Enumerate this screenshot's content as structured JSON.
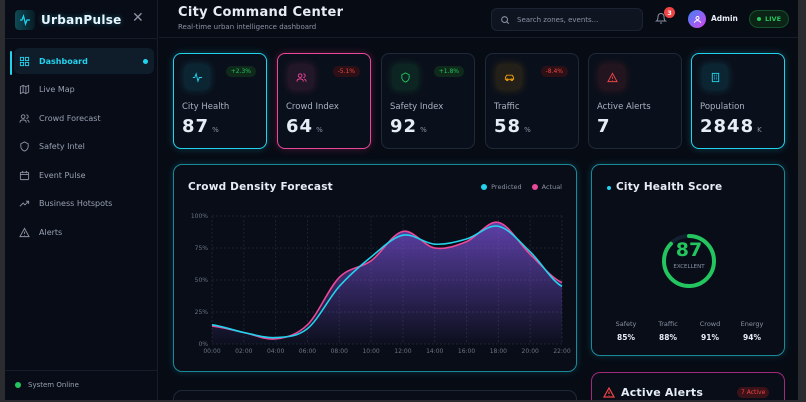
{
  "sidebar": {
    "brand": "UrbanPulse",
    "items": [
      {
        "label": "Dashboard",
        "icon": "grid-icon",
        "active": true
      },
      {
        "label": "Live Map",
        "icon": "map-icon"
      },
      {
        "label": "Crowd Forecast",
        "icon": "users-icon"
      },
      {
        "label": "Safety Intel",
        "icon": "shield-icon"
      },
      {
        "label": "Event Pulse",
        "icon": "calendar-icon"
      },
      {
        "label": "Business Hotspots",
        "icon": "trending-up-icon"
      },
      {
        "label": "Alerts",
        "icon": "alert-triangle-icon"
      }
    ],
    "status": "System Online"
  },
  "header": {
    "title": "City Command Center",
    "subtitle": "Real-time urban intelligence dashboard",
    "search_placeholder": "Search zones, events...",
    "notification_count": "3",
    "user": "Admin",
    "live": "LIVE"
  },
  "cards": [
    {
      "label": "City Health",
      "value": "87",
      "unit": "%",
      "change": "+2.3%",
      "trend": "up",
      "color": "#22d3ee",
      "icon": "activity-icon"
    },
    {
      "label": "Crowd Index",
      "value": "64",
      "unit": "%",
      "change": "-5.1%",
      "trend": "down",
      "color": "#ec4899",
      "icon": "users-icon"
    },
    {
      "label": "Safety Index",
      "value": "92",
      "unit": "%",
      "change": "+1.8%",
      "trend": "up",
      "color": "#22c55e",
      "icon": "shield-icon"
    },
    {
      "label": "Traffic",
      "value": "58",
      "unit": "%",
      "change": "-8.4%",
      "trend": "down",
      "color": "#f59e0b",
      "icon": "car-icon"
    },
    {
      "label": "Active Alerts",
      "value": "7",
      "unit": "",
      "change": "",
      "color": "#ef4444",
      "icon": "alert-triangle-icon"
    },
    {
      "label": "Population",
      "value": "2848",
      "unit": "K",
      "change": "",
      "color": "#22d3ee",
      "icon": "building-icon"
    }
  ],
  "chart_data": {
    "type": "area",
    "title": "Crowd Density Forecast",
    "x": [
      "00:00",
      "02:00",
      "04:00",
      "06:00",
      "08:00",
      "10:00",
      "12:00",
      "14:00",
      "16:00",
      "18:00",
      "20:00",
      "22:00"
    ],
    "yticks": [
      "0%",
      "25%",
      "50%",
      "75%",
      "100%"
    ],
    "ylim": [
      0,
      100
    ],
    "grid": true,
    "legend": "top-right",
    "series": [
      {
        "name": "Predicted",
        "color": "#22d3ee",
        "values": [
          15,
          9,
          5,
          12,
          45,
          68,
          85,
          78,
          82,
          92,
          72,
          45
        ]
      },
      {
        "name": "Actual",
        "color": "#ec4899",
        "values": [
          14,
          9,
          4,
          15,
          52,
          65,
          88,
          75,
          80,
          95,
          70,
          48
        ]
      }
    ]
  },
  "health": {
    "title": "City Health Score",
    "score": "87",
    "score_fraction": 0.87,
    "rating": "EXCELLENT",
    "color": "#22c55e",
    "stats": [
      {
        "label": "Safety",
        "value": "85%"
      },
      {
        "label": "Traffic",
        "value": "88%"
      },
      {
        "label": "Crowd",
        "value": "91%"
      },
      {
        "label": "Energy",
        "value": "94%"
      }
    ]
  },
  "alerts": {
    "title": "Active Alerts",
    "badge": "7 Active"
  }
}
